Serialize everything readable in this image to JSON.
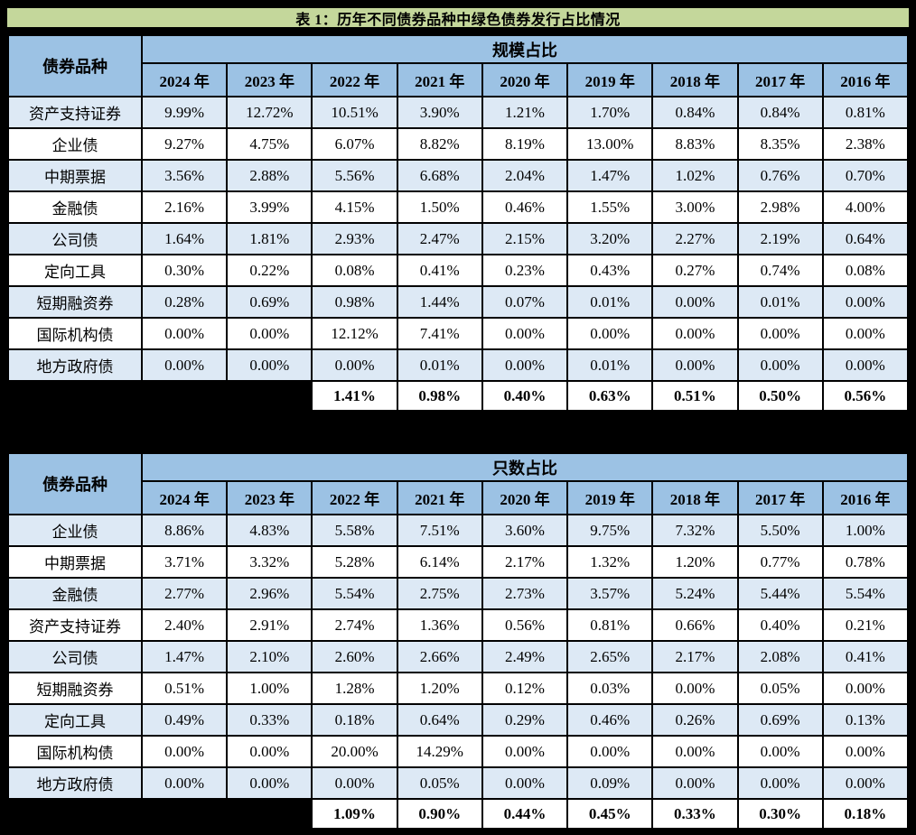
{
  "caption": "表 1：历年不同债券品种中绿色债券发行占比情况",
  "colors": {
    "page_background": "#000000",
    "caption_background": "#C4D79B",
    "header_background": "#9CC2E4",
    "alt_row_background": "#DDE9F5",
    "row_background": "#FFFFFF",
    "grid_line": "#000000",
    "text": "#000000"
  },
  "chart_data": [
    {
      "type": "table",
      "title": "规模占比",
      "label_header": "债券品种",
      "columns": [
        "2024 年",
        "2023 年",
        "2022 年",
        "2021 年",
        "2020 年",
        "2019 年",
        "2018 年",
        "2017 年",
        "2016 年"
      ],
      "rows": [
        {
          "label": "资产支持证券",
          "values": [
            "9.99%",
            "12.72%",
            "10.51%",
            "3.90%",
            "1.21%",
            "1.70%",
            "0.84%",
            "0.84%",
            "0.81%"
          ]
        },
        {
          "label": "企业债",
          "values": [
            "9.27%",
            "4.75%",
            "6.07%",
            "8.82%",
            "8.19%",
            "13.00%",
            "8.83%",
            "8.35%",
            "2.38%"
          ]
        },
        {
          "label": "中期票据",
          "values": [
            "3.56%",
            "2.88%",
            "5.56%",
            "6.68%",
            "2.04%",
            "1.47%",
            "1.02%",
            "0.76%",
            "0.70%"
          ]
        },
        {
          "label": "金融债",
          "values": [
            "2.16%",
            "3.99%",
            "4.15%",
            "1.50%",
            "0.46%",
            "1.55%",
            "3.00%",
            "2.98%",
            "4.00%"
          ]
        },
        {
          "label": "公司债",
          "values": [
            "1.64%",
            "1.81%",
            "2.93%",
            "2.47%",
            "2.15%",
            "3.20%",
            "2.27%",
            "2.19%",
            "0.64%"
          ]
        },
        {
          "label": "定向工具",
          "values": [
            "0.30%",
            "0.22%",
            "0.08%",
            "0.41%",
            "0.23%",
            "0.43%",
            "0.27%",
            "0.74%",
            "0.08%"
          ]
        },
        {
          "label": "短期融资券",
          "values": [
            "0.28%",
            "0.69%",
            "0.98%",
            "1.44%",
            "0.07%",
            "0.01%",
            "0.00%",
            "0.01%",
            "0.00%"
          ]
        },
        {
          "label": "国际机构债",
          "values": [
            "0.00%",
            "0.00%",
            "12.12%",
            "7.41%",
            "0.00%",
            "0.00%",
            "0.00%",
            "0.00%",
            "0.00%"
          ]
        },
        {
          "label": "地方政府债",
          "values": [
            "0.00%",
            "0.00%",
            "0.00%",
            "0.01%",
            "0.00%",
            "0.01%",
            "0.00%",
            "0.00%",
            "0.00%"
          ]
        }
      ],
      "summary_start_column": "2022 年",
      "summary": [
        "1.41%",
        "0.98%",
        "0.40%",
        "0.63%",
        "0.51%",
        "0.50%",
        "0.56%"
      ]
    },
    {
      "type": "table",
      "title": "只数占比",
      "label_header": "债券品种",
      "columns": [
        "2024 年",
        "2023 年",
        "2022 年",
        "2021 年",
        "2020 年",
        "2019 年",
        "2018 年",
        "2017 年",
        "2016 年"
      ],
      "rows": [
        {
          "label": "企业债",
          "values": [
            "8.86%",
            "4.83%",
            "5.58%",
            "7.51%",
            "3.60%",
            "9.75%",
            "7.32%",
            "5.50%",
            "1.00%"
          ]
        },
        {
          "label": "中期票据",
          "values": [
            "3.71%",
            "3.32%",
            "5.28%",
            "6.14%",
            "2.17%",
            "1.32%",
            "1.20%",
            "0.77%",
            "0.78%"
          ]
        },
        {
          "label": "金融债",
          "values": [
            "2.77%",
            "2.96%",
            "5.54%",
            "2.75%",
            "2.73%",
            "3.57%",
            "5.24%",
            "5.44%",
            "5.54%"
          ]
        },
        {
          "label": "资产支持证券",
          "values": [
            "2.40%",
            "2.91%",
            "2.74%",
            "1.36%",
            "0.56%",
            "0.81%",
            "0.66%",
            "0.40%",
            "0.21%"
          ]
        },
        {
          "label": "公司债",
          "values": [
            "1.47%",
            "2.10%",
            "2.60%",
            "2.66%",
            "2.49%",
            "2.65%",
            "2.17%",
            "2.08%",
            "0.41%"
          ]
        },
        {
          "label": "短期融资券",
          "values": [
            "0.51%",
            "1.00%",
            "1.28%",
            "1.20%",
            "0.12%",
            "0.03%",
            "0.00%",
            "0.05%",
            "0.00%"
          ]
        },
        {
          "label": "定向工具",
          "values": [
            "0.49%",
            "0.33%",
            "0.18%",
            "0.64%",
            "0.29%",
            "0.46%",
            "0.26%",
            "0.69%",
            "0.13%"
          ]
        },
        {
          "label": "国际机构债",
          "values": [
            "0.00%",
            "0.00%",
            "20.00%",
            "14.29%",
            "0.00%",
            "0.00%",
            "0.00%",
            "0.00%",
            "0.00%"
          ]
        },
        {
          "label": "地方政府债",
          "values": [
            "0.00%",
            "0.00%",
            "0.00%",
            "0.05%",
            "0.00%",
            "0.09%",
            "0.00%",
            "0.00%",
            "0.00%"
          ]
        }
      ],
      "summary_start_column": "2022 年",
      "summary": [
        "1.09%",
        "0.90%",
        "0.44%",
        "0.45%",
        "0.33%",
        "0.30%",
        "0.18%"
      ]
    }
  ]
}
